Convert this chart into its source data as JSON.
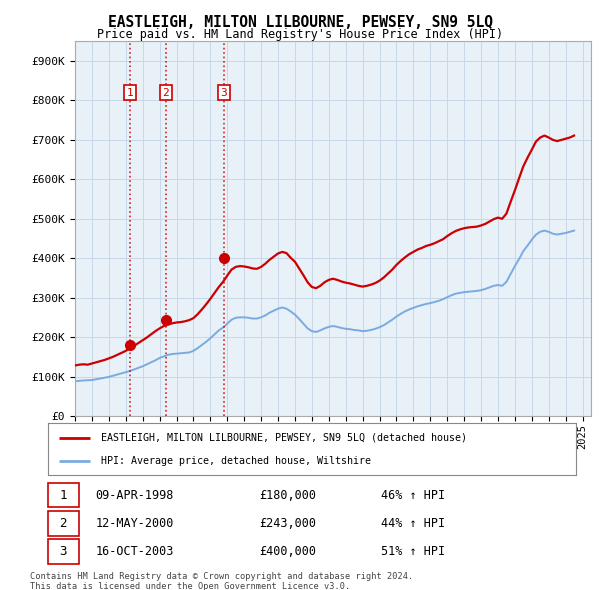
{
  "title": "EASTLEIGH, MILTON LILBOURNE, PEWSEY, SN9 5LQ",
  "subtitle": "Price paid vs. HM Land Registry's House Price Index (HPI)",
  "ylabel_ticks": [
    "£0",
    "£100K",
    "£200K",
    "£300K",
    "£400K",
    "£500K",
    "£600K",
    "£700K",
    "£800K",
    "£900K"
  ],
  "ytick_values": [
    0,
    100000,
    200000,
    300000,
    400000,
    500000,
    600000,
    700000,
    800000,
    900000
  ],
  "ylim": [
    0,
    950000
  ],
  "xlim_start": 1995.0,
  "xlim_end": 2025.5,
  "background_color": "#ffffff",
  "plot_bg_color": "#e8f0f8",
  "grid_color": "#c8d8e8",
  "red_line_color": "#cc0000",
  "blue_line_color": "#7aabe0",
  "transaction_marker_color": "#cc0000",
  "transactions": [
    {
      "id": 1,
      "year": 1998.27,
      "price": 180000,
      "label": "1",
      "date": "09-APR-1998",
      "price_str": "£180,000",
      "pct": "46% ↑ HPI"
    },
    {
      "id": 2,
      "year": 2000.37,
      "price": 243000,
      "label": "2",
      "date": "12-MAY-2000",
      "price_str": "£243,000",
      "pct": "44% ↑ HPI"
    },
    {
      "id": 3,
      "year": 2003.79,
      "price": 400000,
      "label": "3",
      "date": "16-OCT-2003",
      "price_str": "£400,000",
      "pct": "51% ↑ HPI"
    }
  ],
  "hpi_years": [
    1995.0,
    1995.25,
    1995.5,
    1995.75,
    1996.0,
    1996.25,
    1996.5,
    1996.75,
    1997.0,
    1997.25,
    1997.5,
    1997.75,
    1998.0,
    1998.25,
    1998.5,
    1998.75,
    1999.0,
    1999.25,
    1999.5,
    1999.75,
    2000.0,
    2000.25,
    2000.5,
    2000.75,
    2001.0,
    2001.25,
    2001.5,
    2001.75,
    2002.0,
    2002.25,
    2002.5,
    2002.75,
    2003.0,
    2003.25,
    2003.5,
    2003.75,
    2004.0,
    2004.25,
    2004.5,
    2004.75,
    2005.0,
    2005.25,
    2005.5,
    2005.75,
    2006.0,
    2006.25,
    2006.5,
    2006.75,
    2007.0,
    2007.25,
    2007.5,
    2007.75,
    2008.0,
    2008.25,
    2008.5,
    2008.75,
    2009.0,
    2009.25,
    2009.5,
    2009.75,
    2010.0,
    2010.25,
    2010.5,
    2010.75,
    2011.0,
    2011.25,
    2011.5,
    2011.75,
    2012.0,
    2012.25,
    2012.5,
    2012.75,
    2013.0,
    2013.25,
    2013.5,
    2013.75,
    2014.0,
    2014.25,
    2014.5,
    2014.75,
    2015.0,
    2015.25,
    2015.5,
    2015.75,
    2016.0,
    2016.25,
    2016.5,
    2016.75,
    2017.0,
    2017.25,
    2017.5,
    2017.75,
    2018.0,
    2018.25,
    2018.5,
    2018.75,
    2019.0,
    2019.25,
    2019.5,
    2019.75,
    2020.0,
    2020.25,
    2020.5,
    2020.75,
    2021.0,
    2021.25,
    2021.5,
    2021.75,
    2022.0,
    2022.25,
    2022.5,
    2022.75,
    2023.0,
    2023.25,
    2023.5,
    2023.75,
    2024.0,
    2024.25,
    2024.5
  ],
  "hpi_values": [
    88000,
    89000,
    90000,
    90500,
    91000,
    93000,
    95000,
    97000,
    99000,
    102000,
    105000,
    108000,
    111000,
    114000,
    118000,
    122000,
    126000,
    131000,
    136000,
    141000,
    147000,
    151000,
    155000,
    157000,
    158000,
    159000,
    160000,
    161000,
    165000,
    172000,
    180000,
    188000,
    197000,
    207000,
    217000,
    224000,
    234000,
    244000,
    249000,
    250000,
    250000,
    249000,
    247000,
    247000,
    250000,
    255000,
    262000,
    267000,
    272000,
    275000,
    272000,
    265000,
    257000,
    246000,
    234000,
    222000,
    215000,
    213000,
    217000,
    222000,
    226000,
    228000,
    226000,
    223000,
    221000,
    220000,
    218000,
    217000,
    215000,
    216000,
    218000,
    221000,
    225000,
    230000,
    237000,
    244000,
    252000,
    259000,
    265000,
    270000,
    274000,
    278000,
    281000,
    284000,
    286000,
    289000,
    292000,
    296000,
    301000,
    306000,
    310000,
    312000,
    314000,
    315000,
    316000,
    317000,
    319000,
    322000,
    326000,
    330000,
    332000,
    330000,
    340000,
    360000,
    380000,
    398000,
    418000,
    432000,
    447000,
    460000,
    467000,
    470000,
    467000,
    462000,
    460000,
    462000,
    464000,
    467000,
    470000
  ],
  "red_years": [
    1995.0,
    1995.25,
    1995.5,
    1995.75,
    1996.0,
    1996.25,
    1996.5,
    1996.75,
    1997.0,
    1997.25,
    1997.5,
    1997.75,
    1998.0,
    1998.25,
    1998.5,
    1998.75,
    1999.0,
    1999.25,
    1999.5,
    1999.75,
    2000.0,
    2000.25,
    2000.5,
    2000.75,
    2001.0,
    2001.25,
    2001.5,
    2001.75,
    2002.0,
    2002.25,
    2002.5,
    2002.75,
    2003.0,
    2003.25,
    2003.5,
    2003.75,
    2004.0,
    2004.25,
    2004.5,
    2004.75,
    2005.0,
    2005.25,
    2005.5,
    2005.75,
    2006.0,
    2006.25,
    2006.5,
    2006.75,
    2007.0,
    2007.25,
    2007.5,
    2007.75,
    2008.0,
    2008.25,
    2008.5,
    2008.75,
    2009.0,
    2009.25,
    2009.5,
    2009.75,
    2010.0,
    2010.25,
    2010.5,
    2010.75,
    2011.0,
    2011.25,
    2011.5,
    2011.75,
    2012.0,
    2012.25,
    2012.5,
    2012.75,
    2013.0,
    2013.25,
    2013.5,
    2013.75,
    2014.0,
    2014.25,
    2014.5,
    2014.75,
    2015.0,
    2015.25,
    2015.5,
    2015.75,
    2016.0,
    2016.25,
    2016.5,
    2016.75,
    2017.0,
    2017.25,
    2017.5,
    2017.75,
    2018.0,
    2018.25,
    2018.5,
    2018.75,
    2019.0,
    2019.25,
    2019.5,
    2019.75,
    2020.0,
    2020.25,
    2020.5,
    2020.75,
    2021.0,
    2021.25,
    2021.5,
    2021.75,
    2022.0,
    2022.25,
    2022.5,
    2022.75,
    2023.0,
    2023.25,
    2023.5,
    2023.75,
    2024.0,
    2024.25,
    2024.5
  ],
  "red_values": [
    128000,
    130000,
    131000,
    130000,
    133000,
    136000,
    139000,
    142000,
    146000,
    150000,
    155000,
    160000,
    165000,
    172000,
    178000,
    185000,
    192000,
    199000,
    207000,
    215000,
    222000,
    228000,
    232000,
    235000,
    237000,
    238000,
    240000,
    243000,
    248000,
    258000,
    270000,
    283000,
    297000,
    312000,
    327000,
    340000,
    356000,
    371000,
    378000,
    380000,
    379000,
    377000,
    374000,
    373000,
    378000,
    386000,
    396000,
    404000,
    412000,
    416000,
    413000,
    401000,
    391000,
    374000,
    357000,
    339000,
    327000,
    324000,
    330000,
    339000,
    345000,
    348000,
    345000,
    341000,
    338000,
    336000,
    333000,
    330000,
    328000,
    330000,
    333000,
    337000,
    343000,
    351000,
    361000,
    371000,
    383000,
    393000,
    402000,
    410000,
    416000,
    422000,
    426000,
    431000,
    434000,
    438000,
    443000,
    448000,
    456000,
    463000,
    469000,
    473000,
    476000,
    478000,
    479000,
    480000,
    483000,
    487000,
    493000,
    499000,
    503000,
    500000,
    513000,
    543000,
    572000,
    603000,
    633000,
    655000,
    675000,
    696000,
    706000,
    711000,
    706000,
    700000,
    697000,
    700000,
    703000,
    706000,
    711000
  ],
  "legend_entries": [
    {
      "label": "EASTLEIGH, MILTON LILBOURNE, PEWSEY, SN9 5LQ (detached house)",
      "color": "#cc0000",
      "lw": 2.0
    },
    {
      "label": "HPI: Average price, detached house, Wiltshire",
      "color": "#7aabe0",
      "lw": 2.0
    }
  ],
  "footer_line1": "Contains HM Land Registry data © Crown copyright and database right 2024.",
  "footer_line2": "This data is licensed under the Open Government Licence v3.0."
}
